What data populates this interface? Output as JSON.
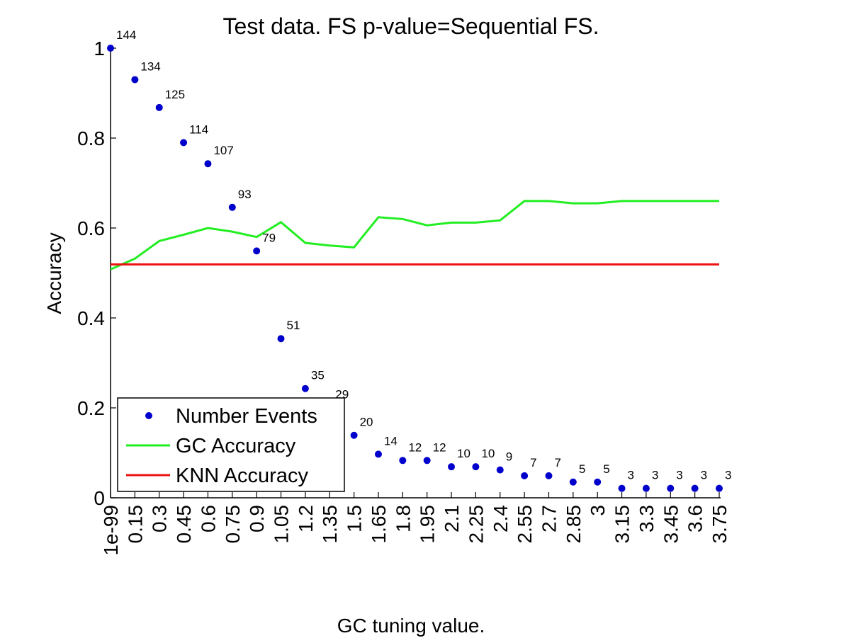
{
  "chart_data": {
    "type": "scatter",
    "title": "Test data. FS p-value=Sequential FS.",
    "xlabel": "GC tuning value.",
    "ylabel": "Accuracy",
    "categories": [
      "1e-99",
      "0.15",
      "0.3",
      "0.45",
      "0.6",
      "0.75",
      "0.9",
      "1.05",
      "1.2",
      "1.35",
      "1.5",
      "1.65",
      "1.8",
      "1.95",
      "2.1",
      "2.25",
      "2.4",
      "2.55",
      "2.7",
      "2.85",
      "3",
      "3.15",
      "3.3",
      "3.45",
      "3.6",
      "3.75"
    ],
    "ylim": [
      0,
      1
    ],
    "yticks": [
      "0",
      "0.2",
      "0.4",
      "0.6",
      "0.8",
      "1"
    ],
    "grid": false,
    "legend_position": "bottom-left",
    "series": [
      {
        "name": "Number Events",
        "kind": "scatter",
        "color": "#0000cc",
        "values": [
          1.0,
          0.93,
          0.868,
          0.79,
          0.743,
          0.646,
          0.549,
          0.354,
          0.243,
          0.201,
          0.139,
          0.097,
          0.083,
          0.083,
          0.069,
          0.069,
          0.062,
          0.049,
          0.049,
          0.035,
          0.035,
          0.021,
          0.021,
          0.021,
          0.021,
          0.021
        ],
        "labels": [
          "144",
          "134",
          "125",
          "114",
          "107",
          "93",
          "79",
          "51",
          "35",
          "29",
          "20",
          "14",
          "12",
          "12",
          "10",
          "10",
          "9",
          "7",
          "7",
          "5",
          "5",
          "3",
          "3",
          "3",
          "3",
          "3"
        ]
      },
      {
        "name": "GC Accuracy",
        "kind": "line",
        "color": "#22ee22",
        "values": [
          0.508,
          0.532,
          0.571,
          0.585,
          0.6,
          0.592,
          0.58,
          0.613,
          0.567,
          0.561,
          0.557,
          0.624,
          0.62,
          0.606,
          0.612,
          0.612,
          0.617,
          0.66,
          0.66,
          0.655,
          0.655,
          0.66,
          0.66,
          0.66,
          0.66,
          0.66
        ]
      },
      {
        "name": "KNN Accuracy",
        "kind": "line",
        "color": "#ee1111",
        "values": [
          0.519,
          0.519,
          0.519,
          0.519,
          0.519,
          0.519,
          0.519,
          0.519,
          0.519,
          0.519,
          0.519,
          0.519,
          0.519,
          0.519,
          0.519,
          0.519,
          0.519,
          0.519,
          0.519,
          0.519,
          0.519,
          0.519,
          0.519,
          0.519,
          0.519,
          0.519
        ]
      }
    ]
  }
}
